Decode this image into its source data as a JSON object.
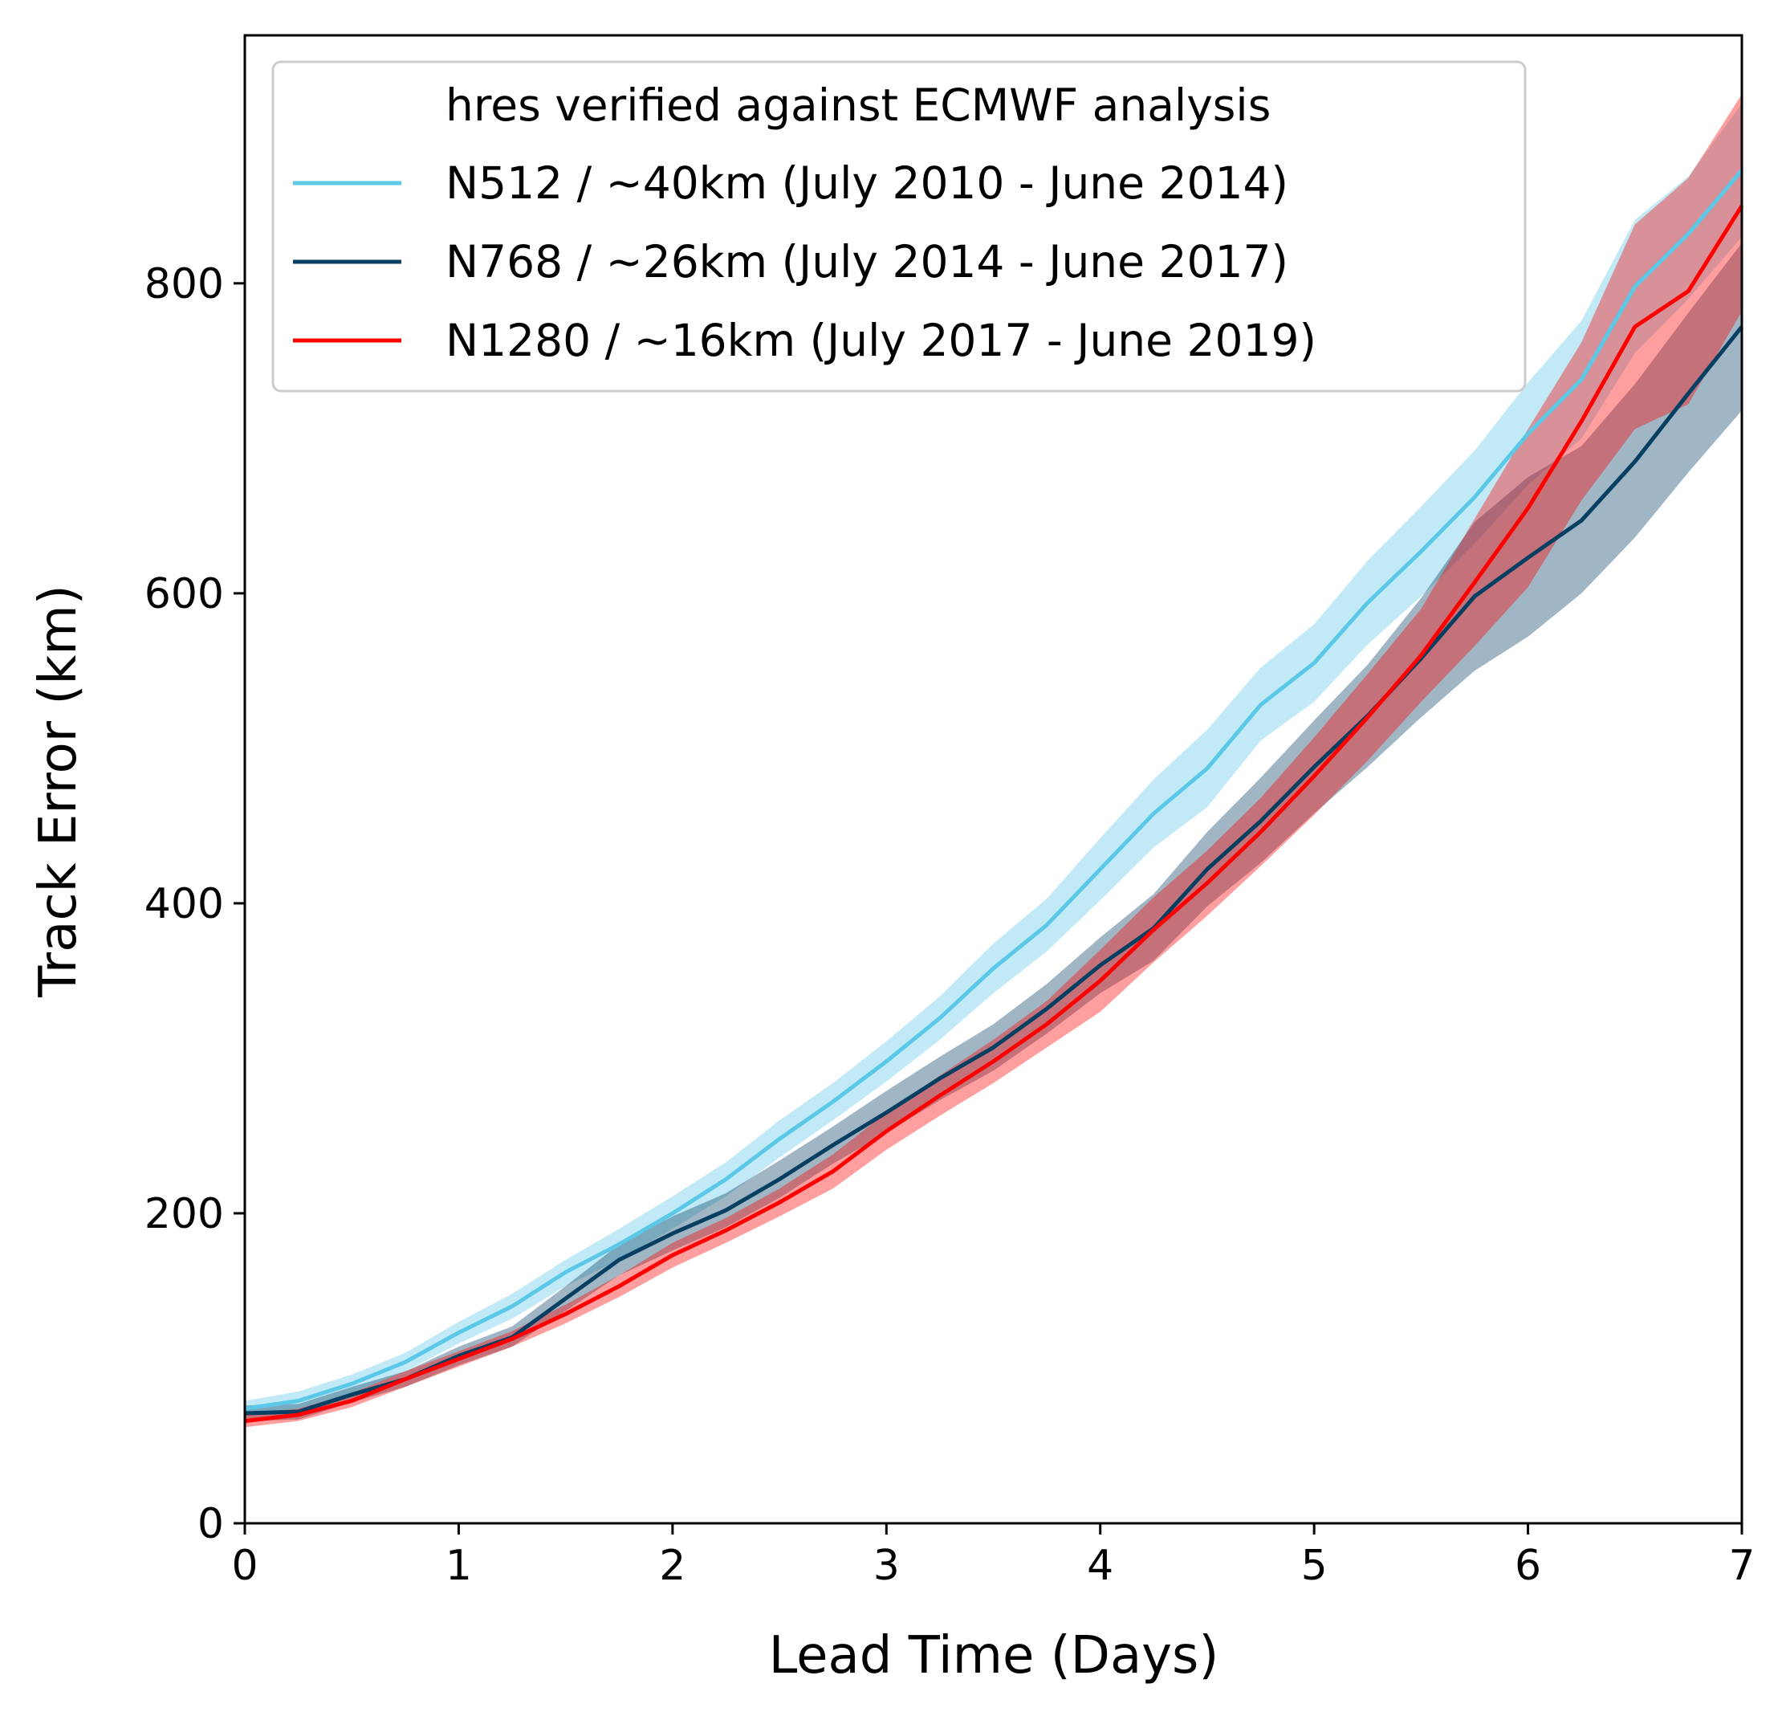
{
  "chart_data": {
    "type": "line",
    "title": "",
    "xlabel": "Lead Time (Days)",
    "ylabel": "Track Error (km)",
    "xlim": [
      0,
      7
    ],
    "ylim": [
      0,
      960
    ],
    "xticks": [
      0,
      1,
      2,
      3,
      4,
      5,
      6,
      7
    ],
    "xtick_labels": [
      "0",
      "1",
      "2",
      "3",
      "4",
      "5",
      "6",
      "7"
    ],
    "yticks": [
      0,
      200,
      400,
      600,
      800
    ],
    "ytick_labels": [
      "0",
      "200",
      "400",
      "600",
      "800"
    ],
    "grid": false,
    "legend": {
      "placement": "top-left",
      "title": "hres verified against ECMWF analysis"
    },
    "x": [
      0,
      0.25,
      0.5,
      0.75,
      1,
      1.25,
      1.5,
      1.75,
      2,
      2.25,
      2.5,
      2.75,
      3,
      3.25,
      3.5,
      3.75,
      4,
      4.25,
      4.5,
      4.75,
      5,
      5.25,
      5.5,
      5.75,
      6,
      6.25,
      6.5,
      6.75,
      7
    ],
    "series": [
      {
        "name": "N512 / ~40km (July 2010 - June 2014)",
        "color": "#5bc8e8",
        "values": [
          74,
          79,
          90,
          104,
          123,
          140,
          162,
          180,
          200,
          222,
          248,
          272,
          298,
          326,
          358,
          386,
          422,
          458,
          487,
          528,
          555,
          594,
          627,
          662,
          703,
          738,
          798,
          832,
          873
        ],
        "lower": [
          70,
          74,
          84,
          98,
          116,
          132,
          153,
          170,
          190,
          211,
          236,
          260,
          285,
          312,
          342,
          369,
          402,
          436,
          462,
          505,
          530,
          567,
          598,
          632,
          670,
          700,
          755,
          790,
          830
        ],
        "upper": [
          79,
          85,
          96,
          110,
          130,
          148,
          170,
          190,
          211,
          233,
          260,
          284,
          311,
          340,
          374,
          403,
          442,
          480,
          512,
          552,
          580,
          621,
          656,
          692,
          736,
          776,
          841,
          869,
          916
        ]
      },
      {
        "name": "N768 / ~26km (July 2014 - June 2017)",
        "color": "#073f63",
        "values": [
          71,
          72,
          83,
          93,
          108,
          120,
          145,
          170,
          187,
          202,
          222,
          244,
          265,
          287,
          307,
          332,
          360,
          384,
          422,
          453,
          488,
          521,
          558,
          598,
          623,
          647,
          685,
          729,
          772
        ],
        "lower": [
          66,
          67,
          78,
          88,
          102,
          114,
          137,
          160,
          176,
          191,
          210,
          232,
          252,
          273,
          292,
          316,
          342,
          363,
          398,
          426,
          458,
          488,
          520,
          550,
          572,
          600,
          636,
          678,
          718
        ],
        "upper": [
          76,
          77,
          88,
          98,
          114,
          127,
          153,
          180,
          198,
          213,
          234,
          256,
          279,
          301,
          322,
          348,
          378,
          406,
          446,
          481,
          518,
          554,
          597,
          646,
          675,
          695,
          735,
          781,
          826
        ]
      },
      {
        "name": "N1280 / ~16km (July 2017 - June 2019)",
        "color": "#ff0000",
        "values": [
          66,
          70,
          79,
          93,
          106,
          119,
          135,
          153,
          173,
          189,
          207,
          227,
          253,
          276,
          298,
          322,
          350,
          383,
          413,
          446,
          482,
          520,
          560,
          607,
          655,
          711,
          772,
          795,
          850
        ],
        "lower": [
          62,
          66,
          75,
          88,
          101,
          114,
          129,
          146,
          165,
          181,
          198,
          216,
          241,
          263,
          284,
          307,
          330,
          362,
          392,
          424,
          457,
          492,
          530,
          566,
          604,
          660,
          706,
          722,
          782
        ],
        "upper": [
          70,
          74,
          84,
          98,
          111,
          124,
          141,
          160,
          181,
          197,
          216,
          238,
          265,
          289,
          312,
          337,
          370,
          404,
          434,
          468,
          507,
          548,
          590,
          648,
          706,
          762,
          838,
          868,
          922
        ]
      }
    ]
  }
}
